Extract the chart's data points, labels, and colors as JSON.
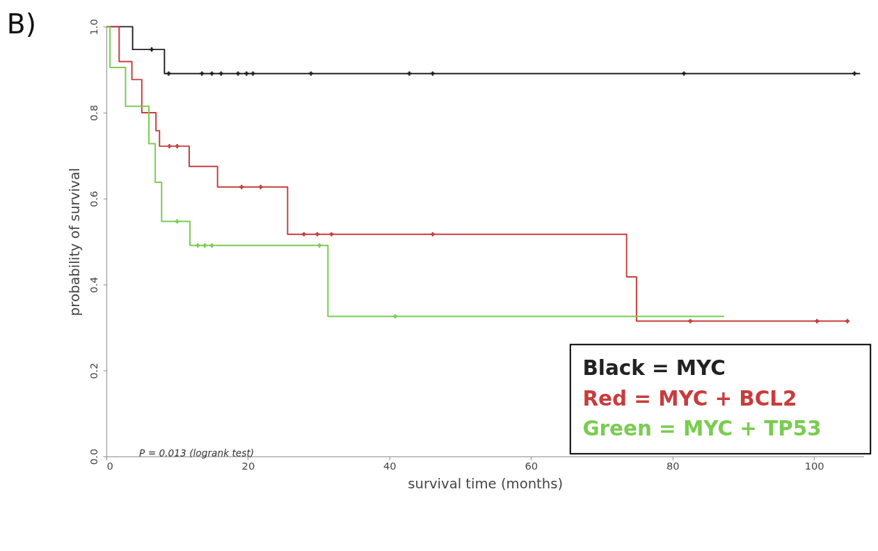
{
  "chart_data": {
    "type": "step",
    "title": "B)",
    "xlabel": "survival time (months)",
    "ylabel": "probability of survival",
    "xlim": [
      0,
      107
    ],
    "xticks": [
      0,
      20,
      40,
      60,
      80,
      100
    ],
    "ylim": [
      0,
      1.0
    ],
    "yticks": [
      {
        "value": 0,
        "label": "0.0"
      },
      {
        "value": 0.2,
        "label": "0.2"
      },
      {
        "value": 0.4,
        "label": "0.4"
      },
      {
        "value": 0.6,
        "label": "0.6"
      },
      {
        "value": 0.8,
        "label": "0.8"
      },
      {
        "value": 1,
        "label": "1.0"
      }
    ],
    "grid": false,
    "legend": "bottom right",
    "line_style": "solid",
    "annotations": [
      "P = 0.013 (logrank test)"
    ],
    "series": [
      {
        "name": "Black  = MYC",
        "type": "step",
        "marker": "none",
        "color": "#222222",
        "x": [
          0,
          3.7,
          8.2,
          106.5
        ],
        "values": [
          1.0,
          0.947,
          0.891,
          0.891
        ]
      },
      {
        "name": "Red     = MYC + BCL2",
        "type": "step",
        "marker": "none",
        "color": "#c83c3c",
        "x": [
          0,
          1.8,
          3.6,
          5.0,
          7.0,
          7.5,
          11.7,
          15.7,
          25.6,
          73.5,
          74.9,
          104.7
        ],
        "values": [
          1.0,
          0.919,
          0.877,
          0.8,
          0.758,
          0.722,
          0.675,
          0.627,
          0.517,
          0.418,
          0.315,
          0.315
        ]
      },
      {
        "name": "Green = MYC + TP53",
        "type": "step",
        "marker": "none",
        "color": "#7acc50",
        "x": [
          0,
          0.5,
          2.7,
          6.0,
          6.9,
          7.8,
          11.8,
          31.3,
          87.3
        ],
        "values": [
          1.0,
          0.905,
          0.815,
          0.728,
          0.638,
          0.547,
          0.491,
          0.326,
          0.326
        ]
      },
      {
        "type": "scatter",
        "marker": "cross",
        "color": "#222222",
        "x": [
          6.4,
          8.8,
          13.5,
          14.9,
          16.2,
          18.6,
          19.8,
          20.7,
          28.9,
          42.8,
          46.1,
          81.6,
          105.7
        ],
        "values": [
          0.947,
          0.891,
          0.891,
          0.891,
          0.891,
          0.891,
          0.891,
          0.891,
          0.891,
          0.891,
          0.891,
          0.891,
          0.891
        ]
      },
      {
        "type": "scatter",
        "marker": "cross",
        "color": "#c83c3c",
        "x": [
          8.9,
          10.0,
          19.1,
          21.8,
          27.9,
          29.8,
          31.8,
          46.1,
          82.5,
          100.4,
          104.7
        ],
        "values": [
          0.722,
          0.722,
          0.627,
          0.627,
          0.517,
          0.517,
          0.517,
          0.517,
          0.315,
          0.315,
          0.315
        ]
      },
      {
        "type": "scatter",
        "marker": "cross",
        "color": "#7acc50",
        "x": [
          10.0,
          12.9,
          13.9,
          14.9,
          30.1,
          40.8
        ],
        "values": [
          0.547,
          0.491,
          0.491,
          0.491,
          0.491,
          0.326
        ]
      }
    ]
  }
}
